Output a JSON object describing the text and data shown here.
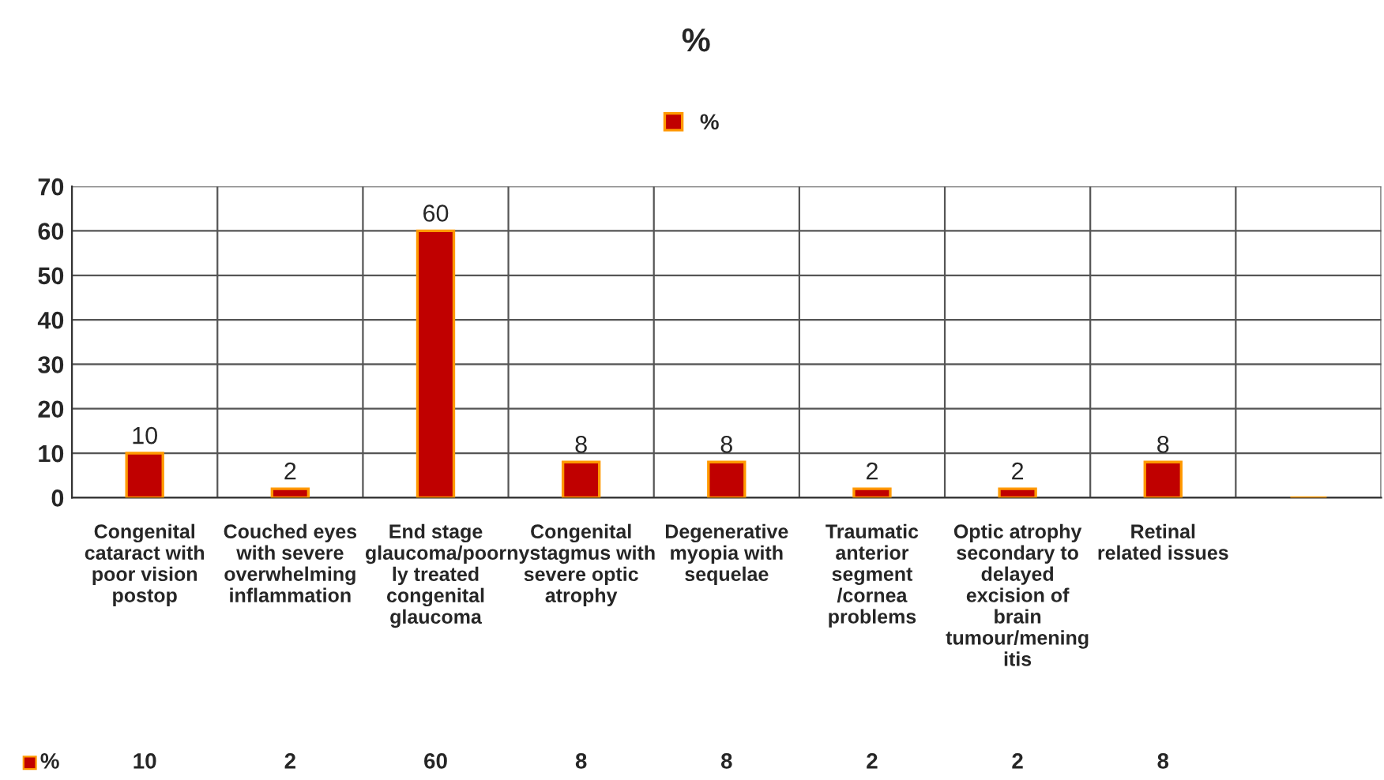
{
  "chart_data": {
    "type": "bar",
    "title": "%",
    "categories": [
      "Congenital cataract with poor vision postop",
      "Couched eyes with severe overwhelming inflammation",
      "End stage glaucoma/poorly treated congenital glaucoma",
      "Congenital nystagmus with severe optic atrophy",
      "Degenerative myopia with sequelae",
      "Traumatic anterior segment /cornea problems",
      "Optic atrophy secondary to delayed excision of brain tumour/meningitis",
      "Retinal related issues",
      null
    ],
    "series": [
      {
        "name": "%",
        "color": "#c00000",
        "values": [
          10,
          2,
          60,
          8,
          8,
          2,
          2,
          8,
          null
        ],
        "value_labels": [
          "10",
          "2",
          "60",
          "8",
          "8",
          "2",
          "2",
          "8",
          null
        ]
      }
    ],
    "ylim": [
      0,
      70
    ],
    "yticks": [
      0,
      10,
      20,
      30,
      40,
      50,
      60,
      70
    ],
    "annotations": [
      "10",
      "2",
      "60",
      "8",
      "8",
      "2",
      "2",
      "8"
    ],
    "grid": true,
    "legend": "top"
  }
}
